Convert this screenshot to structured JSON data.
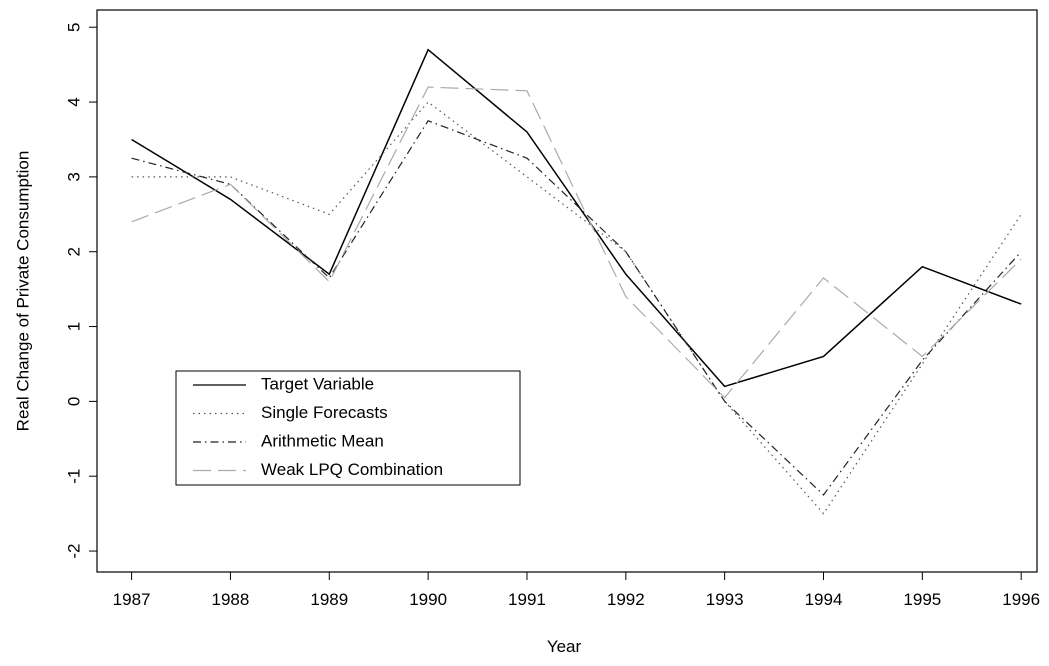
{
  "chart_data": {
    "type": "line",
    "x_label": "Year",
    "y_label": "Real Change of Private Consumption",
    "x": [
      1987,
      1988,
      1989,
      1990,
      1991,
      1992,
      1993,
      1994,
      1995,
      1996
    ],
    "series": [
      {
        "name": "Target Variable",
        "color": "#000000",
        "dash": "solid",
        "values": [
          3.5,
          2.7,
          1.7,
          4.7,
          3.6,
          1.7,
          0.2,
          0.6,
          1.8,
          1.3
        ]
      },
      {
        "name": "Single Forecasts",
        "color": "#555555",
        "dash": "dotted",
        "values": [
          3.0,
          3.0,
          2.5,
          4.0,
          3.0,
          2.0,
          0.0,
          -1.5,
          0.5,
          2.5
        ]
      },
      {
        "name": "Arithmetic Mean",
        "color": "#222222",
        "dash": "dashdot",
        "values": [
          3.25,
          2.9,
          1.65,
          3.75,
          3.25,
          2.0,
          0.0,
          -1.25,
          0.55,
          2.0
        ]
      },
      {
        "name": "Weak LPQ Combination",
        "color": "#aaaaaa",
        "dash": "longdash",
        "values": [
          2.4,
          2.9,
          1.6,
          4.2,
          4.15,
          1.4,
          0.05,
          1.65,
          0.6,
          1.9
        ]
      }
    ],
    "xlim": [
      1986.65,
      1996.16
    ],
    "xticks": [
      1987,
      1988,
      1989,
      1990,
      1991,
      1992,
      1993,
      1994,
      1995,
      1996
    ],
    "ylim": [
      -2.28,
      5.23
    ],
    "yticks": [
      -2,
      -1,
      0,
      1,
      2,
      3,
      4,
      5
    ],
    "legend": "bottom-left"
  }
}
